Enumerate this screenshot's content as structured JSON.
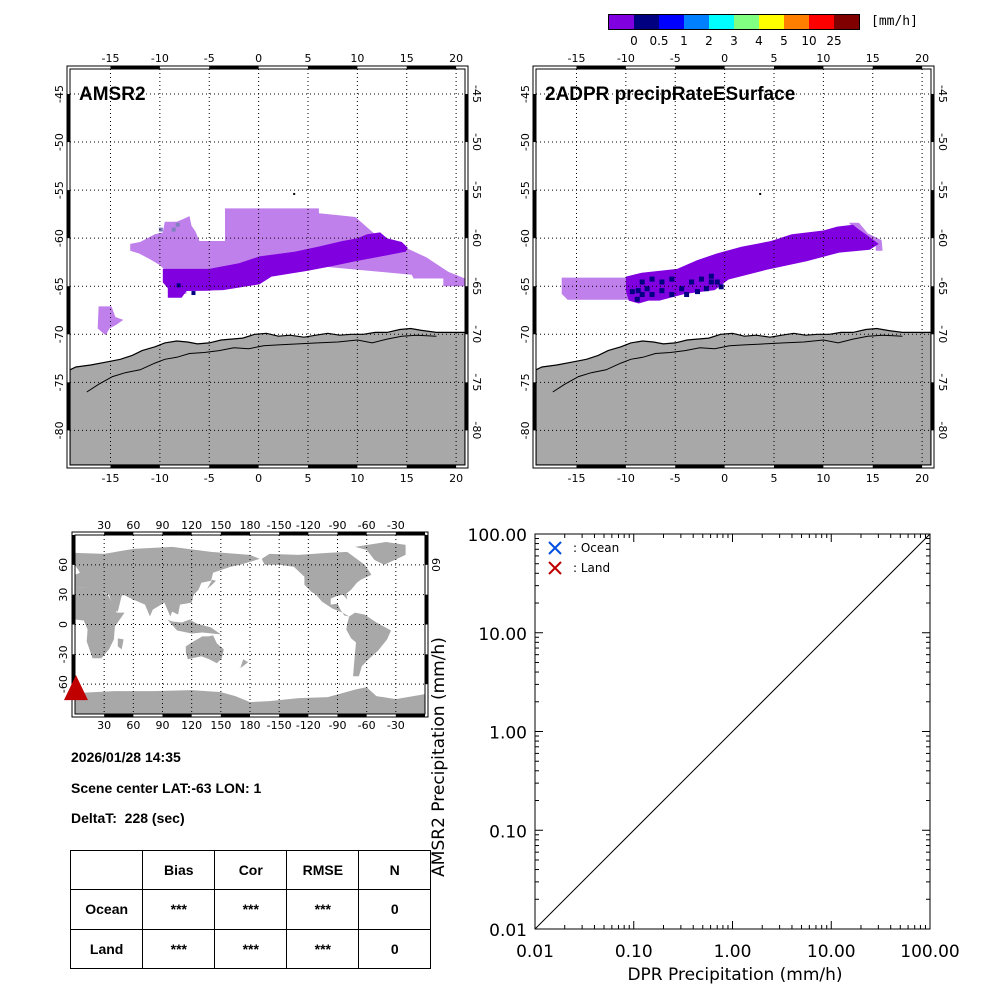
{
  "colorbar": {
    "colors": [
      "#8000e0",
      "#000080",
      "#0000ff",
      "#0080ff",
      "#00ffff",
      "#80ff80",
      "#ffff00",
      "#ff8000",
      "#ff0000",
      "#800000"
    ],
    "labels": [
      "0",
      "0.5",
      "1",
      "2",
      "3",
      "4",
      "5",
      "10",
      "25"
    ],
    "unit": "[mm/h]"
  },
  "map_left": {
    "title": "AMSR2",
    "lon_ticks": [
      "-15",
      "-10",
      "-5",
      "0",
      "5",
      "10",
      "15",
      "20"
    ],
    "lat_ticks": [
      "-45",
      "-50",
      "-55",
      "-60",
      "-65",
      "-70",
      "-75",
      "-80"
    ]
  },
  "map_right": {
    "title": "2ADPR precipRateESurface",
    "lon_ticks": [
      "-15",
      "-10",
      "-5",
      "0",
      "5",
      "10",
      "15",
      "20"
    ],
    "lat_ticks": [
      "-45",
      "-50",
      "-55",
      "-60",
      "-65",
      "-70",
      "-75",
      "-80"
    ]
  },
  "world_map": {
    "lon_ticks": [
      "30",
      "60",
      "90",
      "120",
      "150",
      "180",
      "-150",
      "-120",
      "-90",
      "-60",
      "-30"
    ],
    "lat_ticks": [
      "60",
      "30",
      "0",
      "-30",
      "-60"
    ],
    "right_lat_tick": "60",
    "marker_color": "#c00000"
  },
  "info": {
    "datetime": "2026/01/28 14:35",
    "scene_center": "Scene center LAT:-63   LON:   1",
    "delta_t": "DeltaT:  228 (sec)"
  },
  "stats_table": {
    "headers": [
      "",
      "Bias",
      "Cor",
      "RMSE",
      "N"
    ],
    "rows": [
      {
        "label": "Ocean",
        "bias": "***",
        "cor": "***",
        "rmse": "***",
        "n": "0"
      },
      {
        "label": "Land",
        "bias": "***",
        "cor": "***",
        "rmse": "***",
        "n": "0"
      }
    ]
  },
  "chart_data": {
    "type": "scatter",
    "title": "",
    "xlabel": "DPR Precipitation (mm/h)",
    "ylabel": "AMSR2 Precipitation (mm/h)",
    "xscale": "log",
    "yscale": "log",
    "xlim": [
      0.01,
      100
    ],
    "ylim": [
      0.01,
      100
    ],
    "x_tick_labels": [
      "0.01",
      "0.10",
      "1.00",
      "10.00",
      "100.00"
    ],
    "y_tick_labels": [
      "0.01",
      "0.10",
      "1.00",
      "10.00",
      "100.00"
    ],
    "reference_line": "y = x",
    "legend_position": "top-left",
    "series": [
      {
        "name": ": Ocean",
        "marker": "x",
        "color": "#0050e0",
        "points": []
      },
      {
        "name": ": Land",
        "marker": "x",
        "color": "#c00000",
        "points": []
      }
    ]
  }
}
